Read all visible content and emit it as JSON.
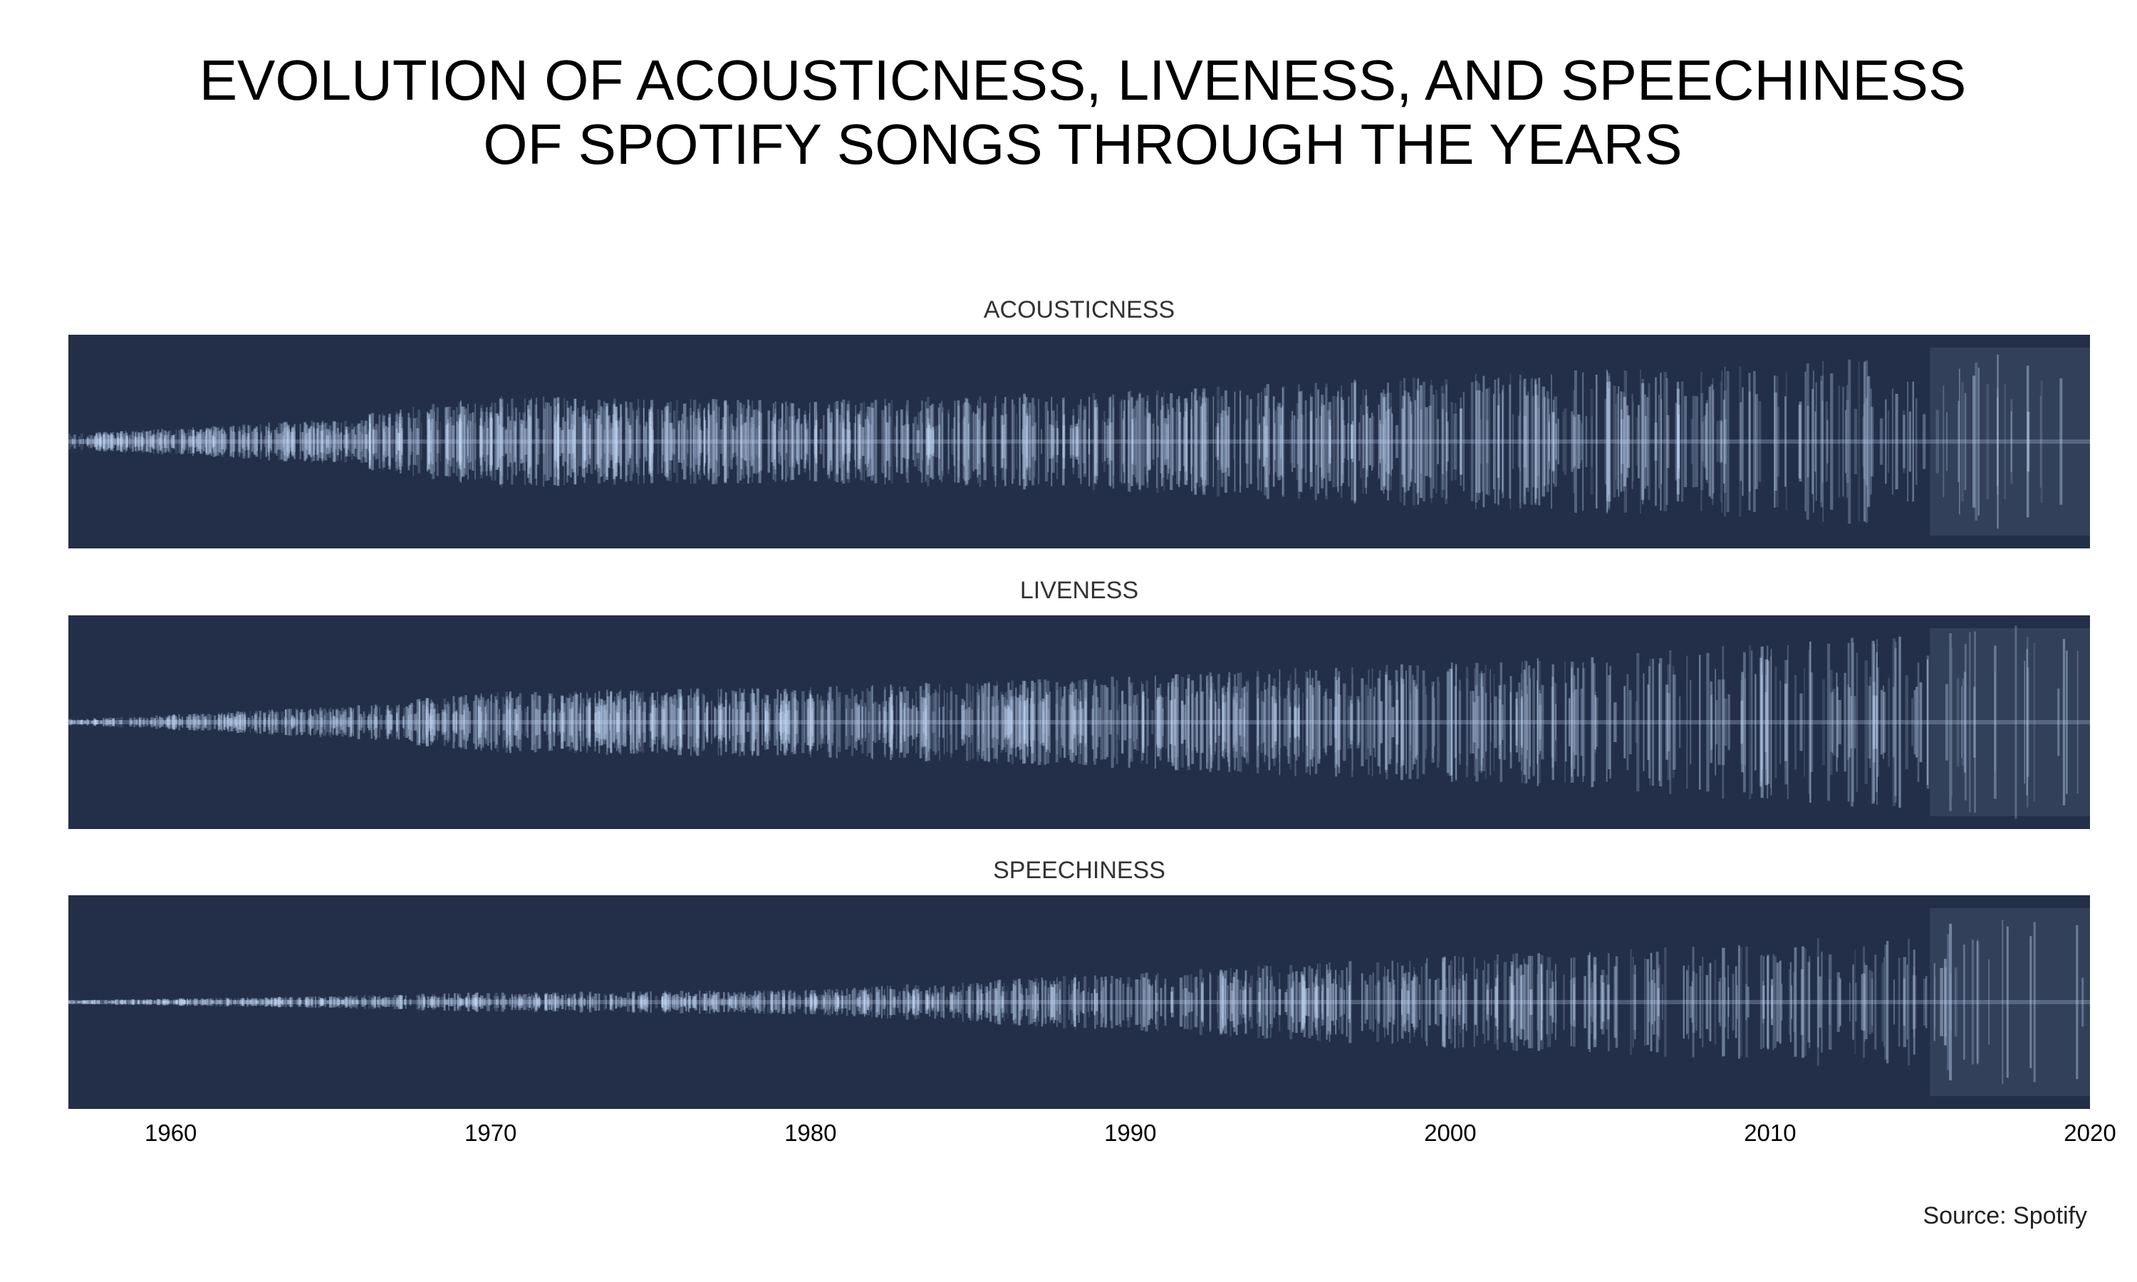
{
  "chart_data": {
    "type": "bar",
    "title_lines": [
      "EVOLUTION OF ACOUSTICNESS, LIVENESS, AND SPEECHINESS",
      "OF SPOTIFY SONGS THROUGH THE YEARS"
    ],
    "xlim": [
      1956.8,
      2020
    ],
    "x_ticks": [
      "1960",
      "1970",
      "1980",
      "1990",
      "2000",
      "2010",
      "2020"
    ],
    "x_tick_values": [
      1960,
      1970,
      1980,
      1990,
      2000,
      2010,
      2020
    ],
    "panel_background": "#232f48",
    "line_color": "#c6dcfa",
    "panels": [
      {
        "name": "ACOUSTICNESS",
        "envelope_years": [
          1957,
          1965,
          1970,
          1980,
          1990,
          2000,
          2005,
          2010,
          2015,
          2020
        ],
        "envelope_amplitude": [
          0.08,
          0.22,
          0.45,
          0.4,
          0.5,
          0.65,
          0.72,
          0.78,
          0.95,
          1.0
        ]
      },
      {
        "name": "LIVENESS",
        "envelope_years": [
          1957,
          1965,
          1970,
          1980,
          1990,
          2000,
          2005,
          2010,
          2015,
          2020
        ],
        "envelope_amplitude": [
          0.03,
          0.15,
          0.3,
          0.35,
          0.45,
          0.6,
          0.68,
          0.78,
          0.9,
          1.0
        ]
      },
      {
        "name": "SPEECHINESS",
        "envelope_years": [
          1957,
          1965,
          1970,
          1980,
          1990,
          2000,
          2005,
          2010,
          2015,
          2020
        ],
        "envelope_amplitude": [
          0.02,
          0.06,
          0.1,
          0.12,
          0.3,
          0.45,
          0.52,
          0.58,
          0.75,
          0.9
        ]
      }
    ]
  },
  "source": "Source: Spotify"
}
